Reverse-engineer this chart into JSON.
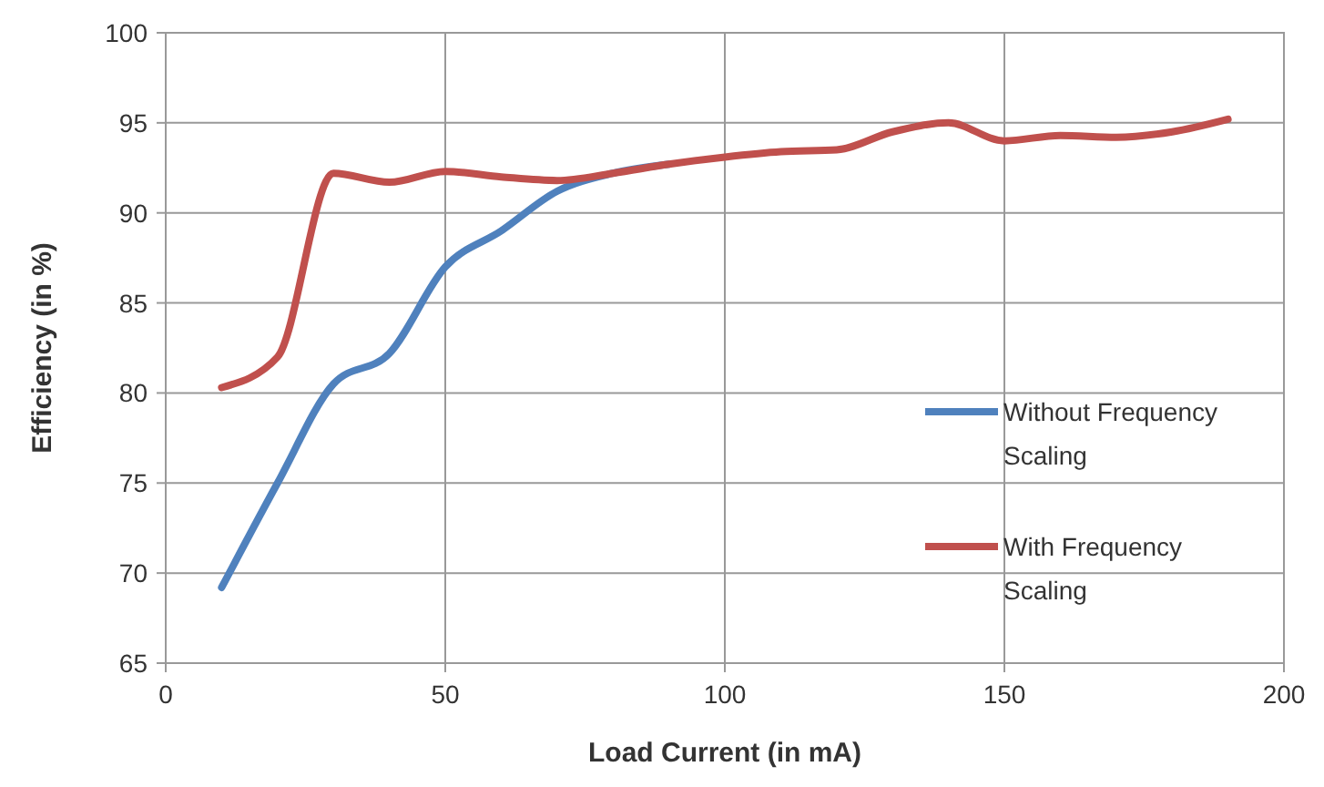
{
  "chart_data": {
    "type": "line",
    "xlabel": "Load Current (in mA)",
    "ylabel": "Efficiency (in %)",
    "x": [
      10,
      20,
      30,
      40,
      50,
      60,
      70,
      80,
      90,
      100,
      110,
      120,
      130,
      140,
      150,
      160,
      170,
      180,
      190
    ],
    "series": [
      {
        "name": "Without Frequency Scaling",
        "color": "#4f81bd",
        "values": [
          69.2,
          75,
          80.5,
          82.2,
          87,
          89,
          91.2,
          92.2,
          92.7,
          null,
          null,
          null,
          null,
          null,
          null,
          null,
          null,
          null,
          null
        ]
      },
      {
        "name": "With Frequency Scaling",
        "color": "#c0504d",
        "values": [
          80.3,
          82,
          92.2,
          91.7,
          92.3,
          92,
          91.8,
          92.2,
          92.7,
          93.1,
          93.4,
          93.5,
          94.5,
          95,
          94,
          94.3,
          94.2,
          94.5,
          95.2
        ]
      }
    ],
    "xlim": [
      0,
      200
    ],
    "xticks": [
      0,
      50,
      100,
      150,
      200
    ],
    "ylim": [
      65,
      100
    ],
    "yticks": [
      65,
      70,
      75,
      80,
      85,
      90,
      95,
      100
    ],
    "grid": true,
    "legend": "right",
    "marker": "none",
    "line_style": "solid"
  }
}
